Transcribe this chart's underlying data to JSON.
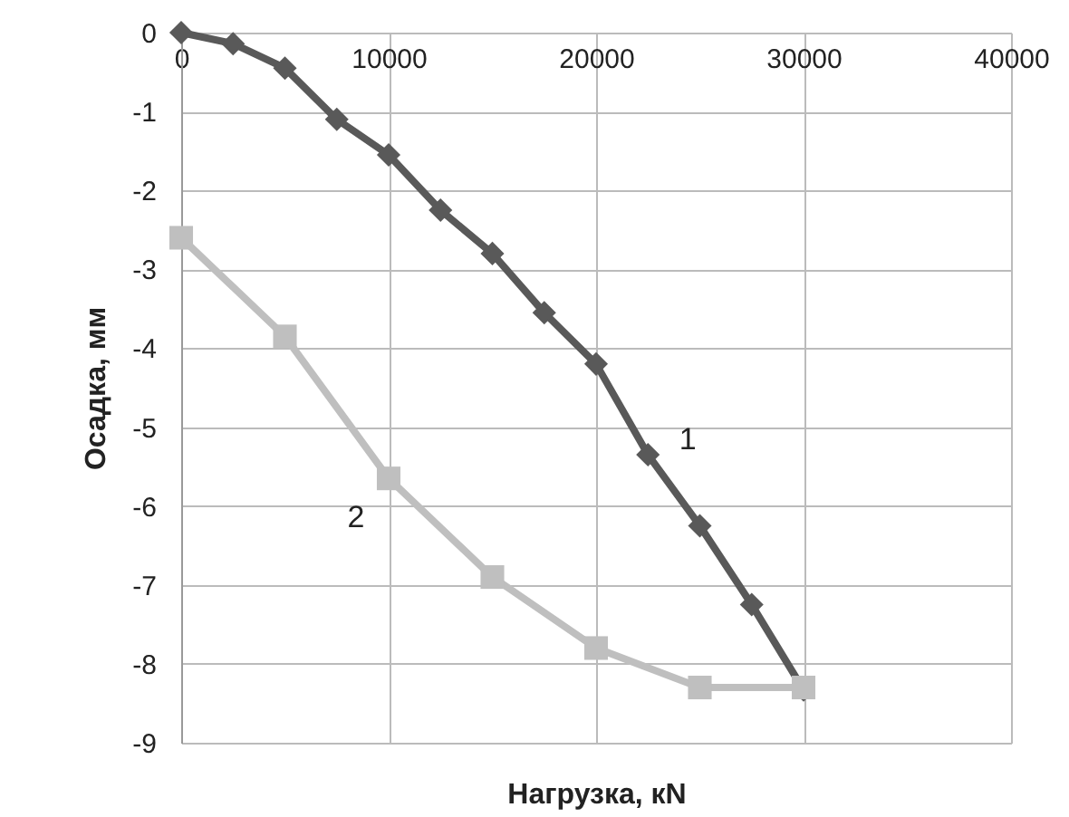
{
  "chart_data": {
    "type": "line",
    "xlabel": "Нагрузка, кN",
    "ylabel": "Осадка, мм",
    "xlim": [
      0,
      40000
    ],
    "xticks": [
      0,
      10000,
      20000,
      30000,
      40000
    ],
    "ylim": [
      -9,
      0
    ],
    "yticks": [
      0,
      -1,
      -2,
      -3,
      -4,
      -5,
      -6,
      -7,
      -8,
      -9
    ],
    "grid": true,
    "line_style": "solid",
    "series": [
      {
        "name": "1",
        "color": "#595959",
        "marker": "diamond",
        "x": [
          0,
          2500,
          5000,
          7500,
          10000,
          12500,
          15000,
          17500,
          20000,
          22500,
          25000,
          27500,
          30000
        ],
        "values": [
          0,
          -0.14,
          -0.45,
          -1.1,
          -1.55,
          -2.25,
          -2.8,
          -3.55,
          -4.2,
          -5.35,
          -6.25,
          -7.25,
          -8.33
        ]
      },
      {
        "name": "2",
        "color": "#bfbfbf",
        "marker": "square",
        "x": [
          0,
          5000,
          10000,
          15000,
          20000,
          25000,
          30000
        ],
        "values": [
          -2.6,
          -3.85,
          -5.65,
          -6.9,
          -7.8,
          -8.3,
          -8.3
        ]
      }
    ]
  }
}
